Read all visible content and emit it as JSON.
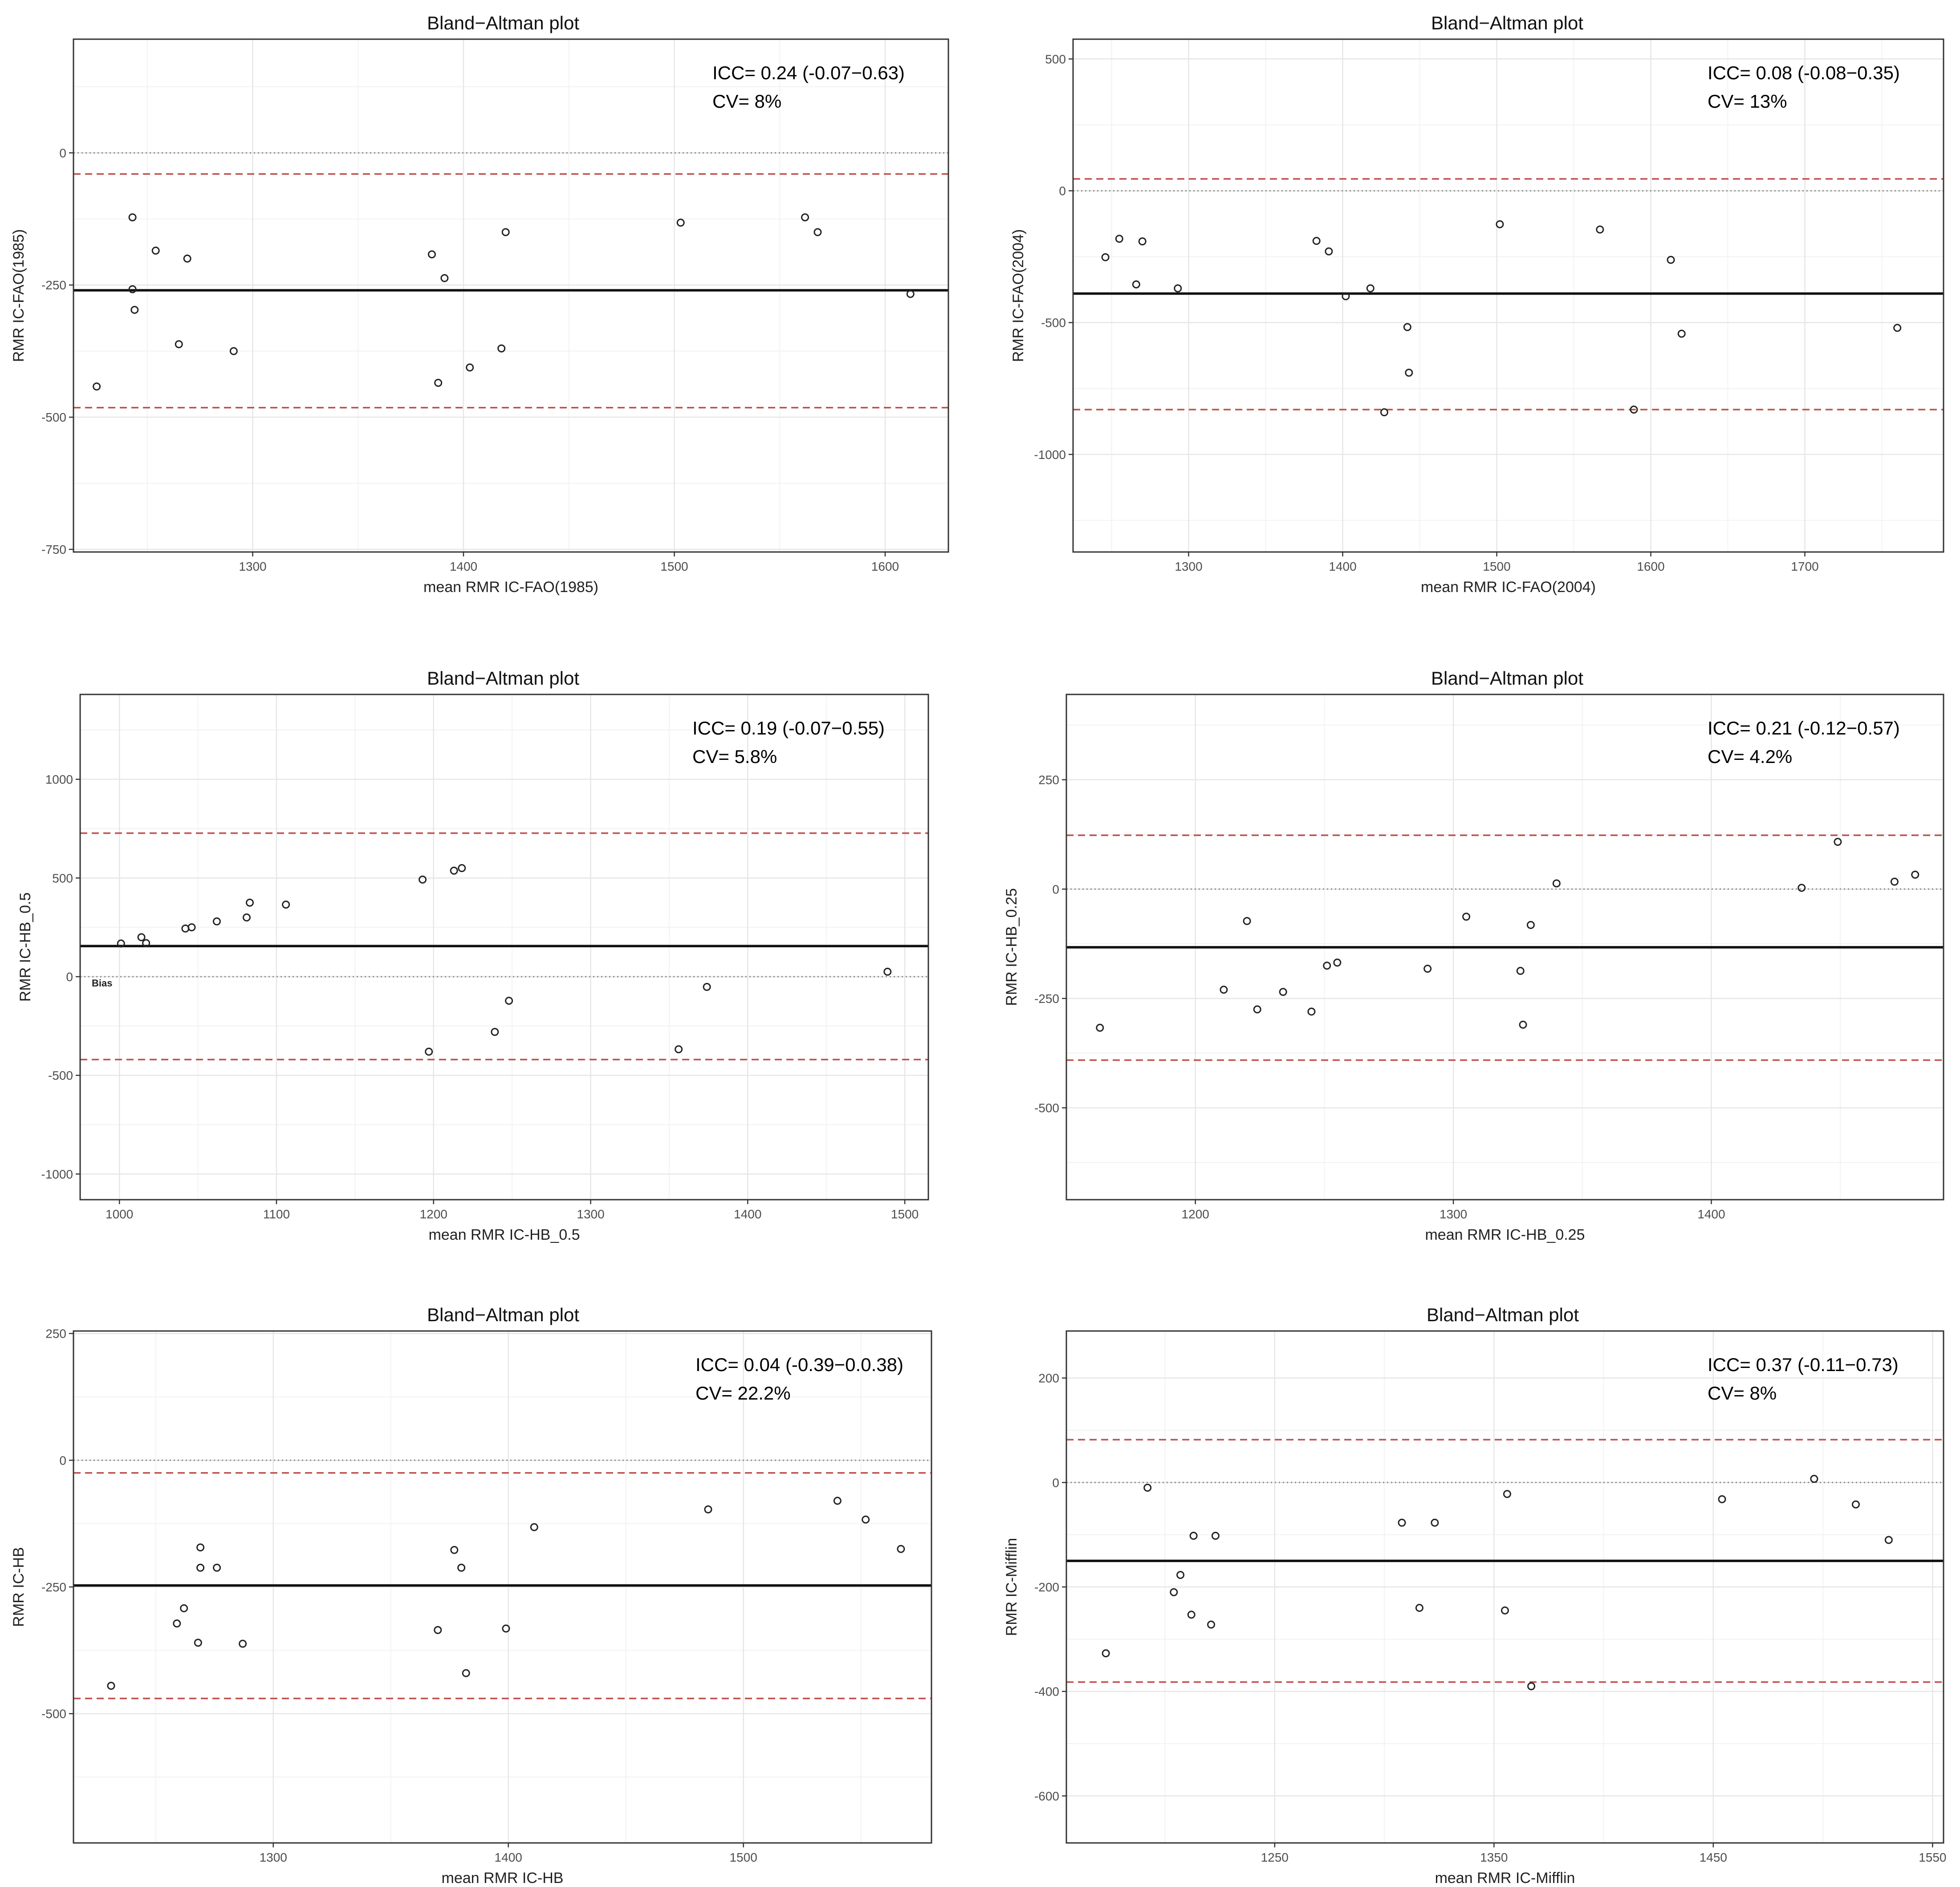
{
  "chart_data": [
    {
      "type": "scatter",
      "title": "Bland−Altman plot",
      "xlabel": "mean RMR IC-FAO(1985)",
      "ylabel": "RMR IC-FAO(1985)",
      "xlim": [
        1215,
        1630
      ],
      "ylim": [
        -755,
        215
      ],
      "xticks": [
        1300,
        1400,
        1500,
        1600
      ],
      "yticks": [
        -750,
        -500,
        -250,
        0
      ],
      "ytick_labels": [
        "-750",
        "-500",
        "-250",
        "0"
      ],
      "zero_line": 0,
      "bias": -260,
      "loa_upper": -40,
      "loa_lower": -482,
      "annotations": [
        "ICC= 0.24 (-0.07−0.63)",
        "CV= 8%"
      ],
      "x": [
        1226,
        1243,
        1243,
        1244,
        1254,
        1265,
        1269,
        1291,
        1385,
        1388,
        1391,
        1403,
        1418,
        1420,
        1503,
        1562,
        1568,
        1612
      ],
      "y": [
        -442,
        -122,
        -258,
        -297,
        -185,
        -362,
        -200,
        -375,
        -192,
        -435,
        -237,
        -406,
        -370,
        -150,
        -132,
        -122,
        -150,
        -267
      ]
    },
    {
      "type": "scatter",
      "title": "Bland−Altman plot",
      "xlabel": "mean RMR IC-FAO(2004)",
      "ylabel": "RMR IC-FAO(2004)",
      "xlim": [
        1225,
        1790
      ],
      "ylim": [
        -1370,
        575
      ],
      "xticks": [
        1300,
        1400,
        1500,
        1600,
        1700
      ],
      "yticks": [
        -1000,
        -500,
        0,
        500
      ],
      "ytick_labels": [
        "-1000",
        "-500",
        "0",
        "500"
      ],
      "zero_line": 0,
      "bias": -390,
      "loa_upper": 45,
      "loa_lower": -830,
      "annotations": [
        "ICC= 0.08 (-0.08−0.35)",
        "CV= 13%"
      ],
      "x": [
        1246,
        1255,
        1266,
        1270,
        1293,
        1383,
        1391,
        1402,
        1418,
        1427,
        1442,
        1443,
        1502,
        1567,
        1589,
        1613,
        1620,
        1760
      ],
      "y": [
        -252,
        -182,
        -355,
        -192,
        -370,
        -190,
        -230,
        -400,
        -370,
        -840,
        -517,
        -690,
        -127,
        -147,
        -830,
        -262,
        -542,
        -520
      ]
    },
    {
      "type": "scatter",
      "title": "Bland−Altman plot",
      "xlabel": "mean RMR IC-HB_0.5",
      "ylabel": "RMR IC-HB_0.5",
      "xlim": [
        975,
        1515
      ],
      "ylim": [
        -1130,
        1430
      ],
      "xticks": [
        1000,
        1100,
        1200,
        1300,
        1400,
        1500
      ],
      "yticks": [
        -1000,
        -500,
        0,
        500,
        1000
      ],
      "ytick_labels": [
        "-1000",
        "-500",
        "0",
        "500",
        "1000"
      ],
      "zero_line": 0,
      "bias": 155,
      "loa_upper": 727,
      "loa_lower": -420,
      "bias_label": "Bias",
      "annotations": [
        "ICC= 0.19 (-0.07−0.55)",
        "CV= 5.8%"
      ],
      "x": [
        1001,
        1014,
        1017,
        1042,
        1046,
        1062,
        1081,
        1083,
        1106,
        1193,
        1197,
        1213,
        1218,
        1239,
        1248,
        1356,
        1374,
        1489
      ],
      "y": [
        168,
        200,
        170,
        244,
        250,
        280,
        300,
        375,
        365,
        492,
        -380,
        537,
        550,
        -280,
        -122,
        -368,
        -52,
        25
      ]
    },
    {
      "type": "scatter",
      "title": "Bland−Altman plot",
      "xlabel": "mean RMR IC-HB_0.25",
      "ylabel": "RMR IC-HB_0.25",
      "xlim": [
        1150,
        1490
      ],
      "ylim": [
        -710,
        445
      ],
      "xticks": [
        1200,
        1300,
        1400
      ],
      "yticks": [
        -500,
        -250,
        0,
        250
      ],
      "ytick_labels": [
        "-500",
        "-250",
        "0",
        "250"
      ],
      "zero_line": 0,
      "bias": -133,
      "loa_upper": 123,
      "loa_lower": -391,
      "annotations": [
        "ICC= 0.21 (-0.12−0.57)",
        "CV= 4.2%"
      ],
      "x": [
        1163,
        1211,
        1220,
        1224,
        1234,
        1245,
        1251,
        1255,
        1290,
        1305,
        1326,
        1327,
        1330,
        1340,
        1435,
        1449,
        1471,
        1479
      ],
      "y": [
        -317,
        -230,
        -73,
        -275,
        -235,
        -280,
        -175,
        -168,
        -182,
        -63,
        -187,
        -310,
        -82,
        13,
        3,
        108,
        17,
        33
      ]
    },
    {
      "type": "scatter",
      "title": "Bland−Altman plot",
      "xlabel": "mean RMR IC-HB",
      "ylabel": "RMR IC-HB",
      "xlim": [
        1215,
        1580
      ],
      "ylim": [
        -755,
        255
      ],
      "xticks": [
        1300,
        1400,
        1500
      ],
      "yticks": [
        -500,
        -250,
        0,
        250
      ],
      "ytick_labels": [
        "-500",
        "-250",
        "0",
        "250"
      ],
      "zero_line": 0,
      "bias": -247,
      "loa_upper": -25,
      "loa_lower": -470,
      "annotations": [
        "ICC= 0.04 (-0.39−0.0.38)",
        "CV= 22.2%"
      ],
      "x": [
        1231,
        1259,
        1262,
        1268,
        1269,
        1269,
        1276,
        1287,
        1370,
        1377,
        1380,
        1382,
        1399,
        1411,
        1485,
        1540,
        1552,
        1567
      ],
      "y": [
        -445,
        -322,
        -292,
        -360,
        -212,
        -172,
        -212,
        -362,
        -335,
        -177,
        -212,
        -420,
        -332,
        -132,
        -97,
        -80,
        -117,
        -175
      ]
    },
    {
      "type": "scatter",
      "title": "Bland−Altman plot",
      "xlabel": "mean RMR IC-Mifflin",
      "ylabel": "RMR IC-Mifflin",
      "xlim": [
        1155,
        1555
      ],
      "ylim": [
        -690,
        290
      ],
      "xticks": [
        1250,
        1350,
        1450,
        1550
      ],
      "yticks": [
        -600,
        -400,
        -200,
        0,
        200
      ],
      "ytick_labels": [
        "-600",
        "-400",
        "-200",
        "0",
        "200"
      ],
      "zero_line": 0,
      "bias": -150,
      "loa_upper": 82,
      "loa_lower": -382,
      "annotations": [
        "ICC= 0.37 (-0.11−0.73)",
        "CV= 8%"
      ],
      "x": [
        1173,
        1192,
        1204,
        1207,
        1212,
        1213,
        1221,
        1223,
        1308,
        1316,
        1323,
        1355,
        1356,
        1367,
        1454,
        1496,
        1515,
        1530
      ],
      "y": [
        -327,
        -10,
        -210,
        -177,
        -253,
        -102,
        -272,
        -102,
        -77,
        -240,
        -77,
        -245,
        -22,
        -390,
        -32,
        7,
        -42,
        -110
      ]
    }
  ]
}
